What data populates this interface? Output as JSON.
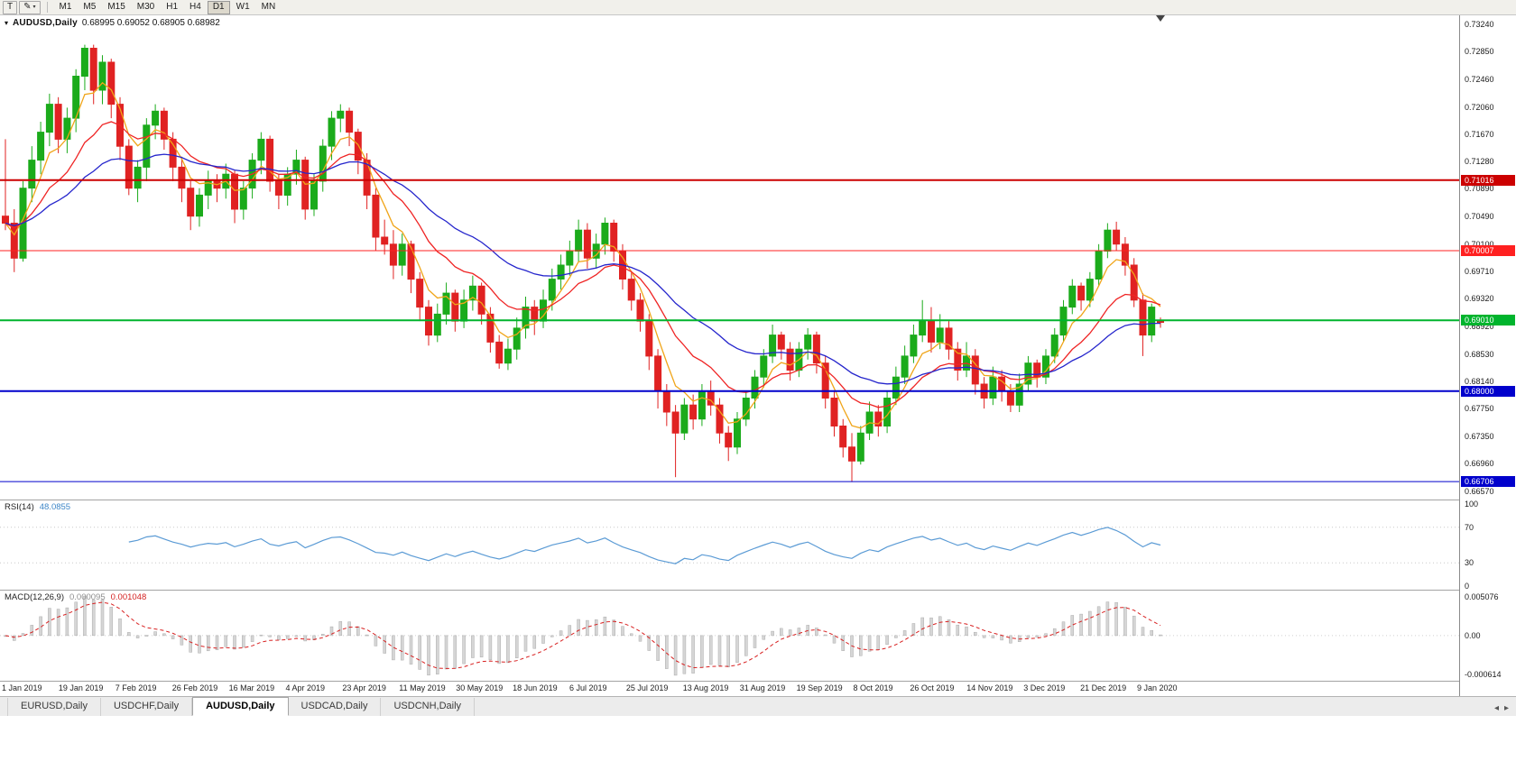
{
  "toolbar": {
    "tool_button": "T",
    "timeframes": [
      "M1",
      "M5",
      "M15",
      "M30",
      "H1",
      "H4",
      "D1",
      "W1",
      "MN"
    ],
    "active_timeframe": "D1"
  },
  "chart_data": {
    "type": "candlestick",
    "symbol": "AUDUSD",
    "timeframe": "Daily",
    "title": "AUDUSD,Daily",
    "ohlc_text": "0.68995 0.69052 0.68905 0.68982",
    "y_range": [
      0.6645,
      0.7337
    ],
    "y_tick_labels": [
      "0.73240",
      "0.72850",
      "0.72460",
      "0.72060",
      "0.71670",
      "0.71280",
      "0.70890",
      "0.70490",
      "0.70100",
      "0.69710",
      "0.69320",
      "0.68920",
      "0.68530",
      "0.68140",
      "0.67750",
      "0.67350",
      "0.66960",
      "0.66570"
    ],
    "x_tick_labels": [
      "1 Jan 2019",
      "19 Jan 2019",
      "7 Feb 2019",
      "26 Feb 2019",
      "16 Mar 2019",
      "4 Apr 2019",
      "23 Apr 2019",
      "11 May 2019",
      "30 May 2019",
      "18 Jun 2019",
      "6 Jul 2019",
      "25 Jul 2019",
      "13 Aug 2019",
      "31 Aug 2019",
      "19 Sep 2019",
      "8 Oct 2019",
      "26 Oct 2019",
      "14 Nov 2019",
      "3 Dec 2019",
      "21 Dec 2019",
      "9 Jan 2020"
    ],
    "colors": {
      "bull": "#1bab1b",
      "bear": "#e02222",
      "background": "#ffffff"
    },
    "horizontal_lines": [
      {
        "price": 0.71016,
        "label": "0.71016",
        "color": "#cc0000",
        "width": 2
      },
      {
        "price": 0.70007,
        "label": "0.70007",
        "color": "#ff2020",
        "width": 1
      },
      {
        "price": 0.6901,
        "label": "0.69010",
        "color": "#00b42d",
        "width": 2
      },
      {
        "price": 0.68,
        "label": "0.68000",
        "color": "#0000cc",
        "width": 2
      },
      {
        "price": 0.66706,
        "label": "0.66706",
        "color": "#0000cc",
        "width": 1
      }
    ],
    "moving_averages": [
      {
        "name": "fast-ma",
        "period": 5,
        "color": "#f0a519"
      },
      {
        "name": "mid-ma",
        "period": 13,
        "color": "#ef2424"
      },
      {
        "name": "slow-ma",
        "period": 28,
        "color": "#2525cc"
      }
    ],
    "indicators": [
      {
        "name": "RSI",
        "label": "RSI(14)",
        "value": "48.0855",
        "period": 14,
        "axis_labels": [
          "100",
          "70",
          "30",
          "0"
        ],
        "levels": [
          70,
          30
        ],
        "range": [
          0,
          100
        ],
        "color": "#5b9bd5"
      },
      {
        "name": "MACD",
        "label": "MACD(12,26,9)",
        "values": [
          "0.000095",
          "0.001048"
        ],
        "axis_labels": [
          "0.005076",
          "0.00",
          "-0.000614"
        ],
        "render_periods": {
          "fast": 6,
          "slow": 13,
          "signal": 5
        },
        "histogram_color": "#d6d6d6",
        "histogram_stroke": "#ababab",
        "signal_color": "#d82020"
      }
    ],
    "candles": [
      [
        0.705,
        0.716,
        0.703,
        0.704
      ],
      [
        0.704,
        0.706,
        0.697,
        0.699
      ],
      [
        0.699,
        0.71,
        0.6985,
        0.709
      ],
      [
        0.709,
        0.715,
        0.707,
        0.713
      ],
      [
        0.713,
        0.7185,
        0.711,
        0.717
      ],
      [
        0.717,
        0.7225,
        0.715,
        0.721
      ],
      [
        0.721,
        0.722,
        0.714,
        0.716
      ],
      [
        0.716,
        0.7205,
        0.714,
        0.719
      ],
      [
        0.719,
        0.726,
        0.717,
        0.725
      ],
      [
        0.725,
        0.7295,
        0.723,
        0.729
      ],
      [
        0.729,
        0.7295,
        0.721,
        0.723
      ],
      [
        0.723,
        0.728,
        0.721,
        0.727
      ],
      [
        0.727,
        0.7275,
        0.719,
        0.721
      ],
      [
        0.721,
        0.722,
        0.713,
        0.715
      ],
      [
        0.715,
        0.716,
        0.708,
        0.709
      ],
      [
        0.709,
        0.713,
        0.707,
        0.712
      ],
      [
        0.712,
        0.719,
        0.71,
        0.718
      ],
      [
        0.718,
        0.721,
        0.716,
        0.72
      ],
      [
        0.72,
        0.7205,
        0.7145,
        0.716
      ],
      [
        0.716,
        0.717,
        0.71,
        0.712
      ],
      [
        0.712,
        0.7135,
        0.707,
        0.709
      ],
      [
        0.709,
        0.71,
        0.703,
        0.705
      ],
      [
        0.705,
        0.709,
        0.7035,
        0.708
      ],
      [
        0.708,
        0.7115,
        0.706,
        0.71
      ],
      [
        0.71,
        0.711,
        0.707,
        0.709
      ],
      [
        0.709,
        0.7125,
        0.7075,
        0.711
      ],
      [
        0.711,
        0.7115,
        0.704,
        0.706
      ],
      [
        0.706,
        0.71,
        0.7045,
        0.709
      ],
      [
        0.709,
        0.714,
        0.7075,
        0.713
      ],
      [
        0.713,
        0.717,
        0.711,
        0.716
      ],
      [
        0.716,
        0.7165,
        0.7085,
        0.71
      ],
      [
        0.71,
        0.711,
        0.706,
        0.708
      ],
      [
        0.708,
        0.712,
        0.7065,
        0.711
      ],
      [
        0.711,
        0.7145,
        0.7095,
        0.713
      ],
      [
        0.713,
        0.7135,
        0.7045,
        0.706
      ],
      [
        0.706,
        0.711,
        0.705,
        0.71
      ],
      [
        0.71,
        0.716,
        0.7085,
        0.715
      ],
      [
        0.715,
        0.72,
        0.713,
        0.719
      ],
      [
        0.719,
        0.721,
        0.717,
        0.72
      ],
      [
        0.72,
        0.7205,
        0.715,
        0.717
      ],
      [
        0.717,
        0.7175,
        0.711,
        0.713
      ],
      [
        0.713,
        0.714,
        0.706,
        0.708
      ],
      [
        0.708,
        0.709,
        0.7,
        0.702
      ],
      [
        0.702,
        0.7045,
        0.6995,
        0.701
      ],
      [
        0.701,
        0.703,
        0.696,
        0.698
      ],
      [
        0.698,
        0.7025,
        0.6965,
        0.701
      ],
      [
        0.701,
        0.7015,
        0.694,
        0.696
      ],
      [
        0.696,
        0.697,
        0.69,
        0.692
      ],
      [
        0.692,
        0.693,
        0.6865,
        0.688
      ],
      [
        0.688,
        0.6925,
        0.687,
        0.691
      ],
      [
        0.691,
        0.6955,
        0.6895,
        0.694
      ],
      [
        0.694,
        0.6945,
        0.6885,
        0.69
      ],
      [
        0.69,
        0.6945,
        0.689,
        0.693
      ],
      [
        0.693,
        0.6965,
        0.6915,
        0.695
      ],
      [
        0.695,
        0.6955,
        0.6895,
        0.691
      ],
      [
        0.691,
        0.692,
        0.6855,
        0.687
      ],
      [
        0.687,
        0.688,
        0.6832,
        0.684
      ],
      [
        0.684,
        0.6875,
        0.683,
        0.686
      ],
      [
        0.686,
        0.6905,
        0.6845,
        0.689
      ],
      [
        0.689,
        0.6935,
        0.6875,
        0.692
      ],
      [
        0.692,
        0.693,
        0.688,
        0.69
      ],
      [
        0.69,
        0.6945,
        0.689,
        0.693
      ],
      [
        0.693,
        0.6975,
        0.6915,
        0.696
      ],
      [
        0.696,
        0.6995,
        0.6945,
        0.698
      ],
      [
        0.698,
        0.7015,
        0.6965,
        0.7
      ],
      [
        0.7,
        0.7045,
        0.6985,
        0.703
      ],
      [
        0.703,
        0.704,
        0.6975,
        0.699
      ],
      [
        0.699,
        0.7025,
        0.6975,
        0.701
      ],
      [
        0.701,
        0.7048,
        0.6995,
        0.704
      ],
      [
        0.704,
        0.7045,
        0.6985,
        0.7
      ],
      [
        0.7,
        0.701,
        0.6945,
        0.696
      ],
      [
        0.696,
        0.697,
        0.6915,
        0.693
      ],
      [
        0.693,
        0.694,
        0.6885,
        0.69
      ],
      [
        0.69,
        0.691,
        0.683,
        0.685
      ],
      [
        0.685,
        0.686,
        0.6775,
        0.68
      ],
      [
        0.68,
        0.681,
        0.675,
        0.677
      ],
      [
        0.677,
        0.678,
        0.6677,
        0.674
      ],
      [
        0.674,
        0.679,
        0.673,
        0.678
      ],
      [
        0.678,
        0.6795,
        0.6745,
        0.676
      ],
      [
        0.676,
        0.681,
        0.675,
        0.68
      ],
      [
        0.68,
        0.6815,
        0.6765,
        0.678
      ],
      [
        0.678,
        0.679,
        0.6725,
        0.674
      ],
      [
        0.674,
        0.675,
        0.67,
        0.672
      ],
      [
        0.672,
        0.677,
        0.671,
        0.676
      ],
      [
        0.676,
        0.68,
        0.675,
        0.679
      ],
      [
        0.679,
        0.683,
        0.6775,
        0.682
      ],
      [
        0.682,
        0.686,
        0.6805,
        0.685
      ],
      [
        0.685,
        0.6895,
        0.684,
        0.688
      ],
      [
        0.688,
        0.6885,
        0.6845,
        0.686
      ],
      [
        0.686,
        0.687,
        0.6815,
        0.683
      ],
      [
        0.683,
        0.687,
        0.682,
        0.686
      ],
      [
        0.686,
        0.689,
        0.6845,
        0.688
      ],
      [
        0.688,
        0.6885,
        0.6825,
        0.684
      ],
      [
        0.684,
        0.685,
        0.6775,
        0.679
      ],
      [
        0.679,
        0.68,
        0.6735,
        0.675
      ],
      [
        0.675,
        0.676,
        0.6705,
        0.672
      ],
      [
        0.672,
        0.674,
        0.667,
        0.67
      ],
      [
        0.67,
        0.675,
        0.6695,
        0.674
      ],
      [
        0.674,
        0.6785,
        0.673,
        0.677
      ],
      [
        0.677,
        0.678,
        0.6735,
        0.675
      ],
      [
        0.675,
        0.68,
        0.674,
        0.679
      ],
      [
        0.679,
        0.6835,
        0.678,
        0.682
      ],
      [
        0.682,
        0.6865,
        0.681,
        0.685
      ],
      [
        0.685,
        0.6895,
        0.684,
        0.688
      ],
      [
        0.688,
        0.693,
        0.687,
        0.69
      ],
      [
        0.69,
        0.692,
        0.6855,
        0.687
      ],
      [
        0.687,
        0.691,
        0.686,
        0.689
      ],
      [
        0.689,
        0.69,
        0.6845,
        0.686
      ],
      [
        0.686,
        0.687,
        0.6815,
        0.683
      ],
      [
        0.683,
        0.687,
        0.682,
        0.685
      ],
      [
        0.685,
        0.686,
        0.6795,
        0.681
      ],
      [
        0.681,
        0.682,
        0.6775,
        0.679
      ],
      [
        0.679,
        0.6835,
        0.678,
        0.682
      ],
      [
        0.682,
        0.683,
        0.6785,
        0.68
      ],
      [
        0.68,
        0.681,
        0.677,
        0.678
      ],
      [
        0.678,
        0.6825,
        0.677,
        0.681
      ],
      [
        0.681,
        0.685,
        0.68,
        0.684
      ],
      [
        0.684,
        0.6845,
        0.6805,
        0.682
      ],
      [
        0.682,
        0.686,
        0.681,
        0.685
      ],
      [
        0.685,
        0.689,
        0.684,
        0.688
      ],
      [
        0.688,
        0.693,
        0.687,
        0.692
      ],
      [
        0.692,
        0.696,
        0.691,
        0.695
      ],
      [
        0.695,
        0.6955,
        0.6915,
        0.693
      ],
      [
        0.693,
        0.697,
        0.692,
        0.696
      ],
      [
        0.696,
        0.701,
        0.695,
        0.7
      ],
      [
        0.7,
        0.704,
        0.699,
        0.703
      ],
      [
        0.703,
        0.7042,
        0.7,
        0.701
      ],
      [
        0.701,
        0.702,
        0.6965,
        0.698
      ],
      [
        0.698,
        0.699,
        0.692,
        0.693
      ],
      [
        0.693,
        0.694,
        0.685,
        0.688
      ],
      [
        0.688,
        0.6925,
        0.687,
        0.692
      ],
      [
        0.68995,
        0.69052,
        0.68905,
        0.68982
      ]
    ]
  },
  "tabs": {
    "items": [
      "EURUSD,Daily",
      "USDCHF,Daily",
      "AUDUSD,Daily",
      "USDCAD,Daily",
      "USDCNH,Daily"
    ],
    "active": "AUDUSD,Daily"
  }
}
